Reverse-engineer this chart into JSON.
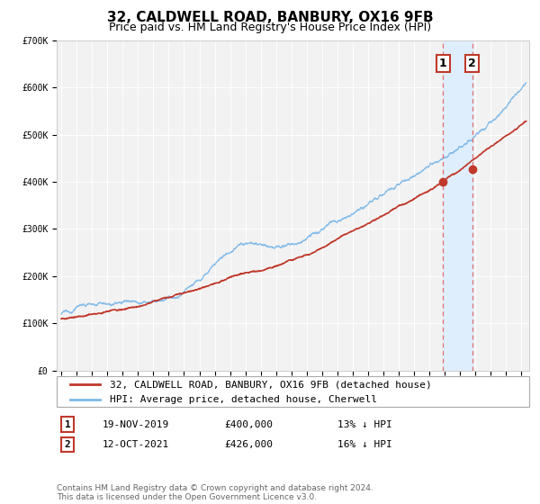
{
  "title": "32, CALDWELL ROAD, BANBURY, OX16 9FB",
  "subtitle": "Price paid vs. HM Land Registry's House Price Index (HPI)",
  "background_color": "#ffffff",
  "plot_background_color": "#f2f2f2",
  "grid_color": "#ffffff",
  "ylim": [
    0,
    700000
  ],
  "yticks": [
    0,
    100000,
    200000,
    300000,
    400000,
    500000,
    600000,
    700000
  ],
  "ytick_labels": [
    "£0",
    "£100K",
    "£200K",
    "£300K",
    "£400K",
    "£500K",
    "£600K",
    "£700K"
  ],
  "xlim_start": 1994.7,
  "xlim_end": 2025.5,
  "xticks": [
    1995,
    1996,
    1997,
    1998,
    1999,
    2000,
    2001,
    2002,
    2003,
    2004,
    2005,
    2006,
    2007,
    2008,
    2009,
    2010,
    2011,
    2012,
    2013,
    2014,
    2015,
    2016,
    2017,
    2018,
    2019,
    2020,
    2021,
    2022,
    2023,
    2024,
    2025
  ],
  "hpi_color": "#7db8e8",
  "price_color": "#c0392b",
  "shade_color": "#ddeeff",
  "sale1_x": 2019.88,
  "sale1_y": 400000,
  "sale2_x": 2021.78,
  "sale2_y": 426000,
  "legend_house_label": "32, CALDWELL ROAD, BANBURY, OX16 9FB (detached house)",
  "legend_hpi_label": "HPI: Average price, detached house, Cherwell",
  "annotation1_num": "1",
  "annotation1_date": "19-NOV-2019",
  "annotation1_price": "£400,000",
  "annotation1_pct": "13% ↓ HPI",
  "annotation2_num": "2",
  "annotation2_date": "12-OCT-2021",
  "annotation2_price": "£426,000",
  "annotation2_pct": "16% ↓ HPI",
  "footnote": "Contains HM Land Registry data © Crown copyright and database right 2024.\nThis data is licensed under the Open Government Licence v3.0.",
  "title_fontsize": 11,
  "subtitle_fontsize": 9,
  "tick_fontsize": 7,
  "legend_fontsize": 8,
  "annotation_fontsize": 8,
  "footnote_fontsize": 6.5
}
